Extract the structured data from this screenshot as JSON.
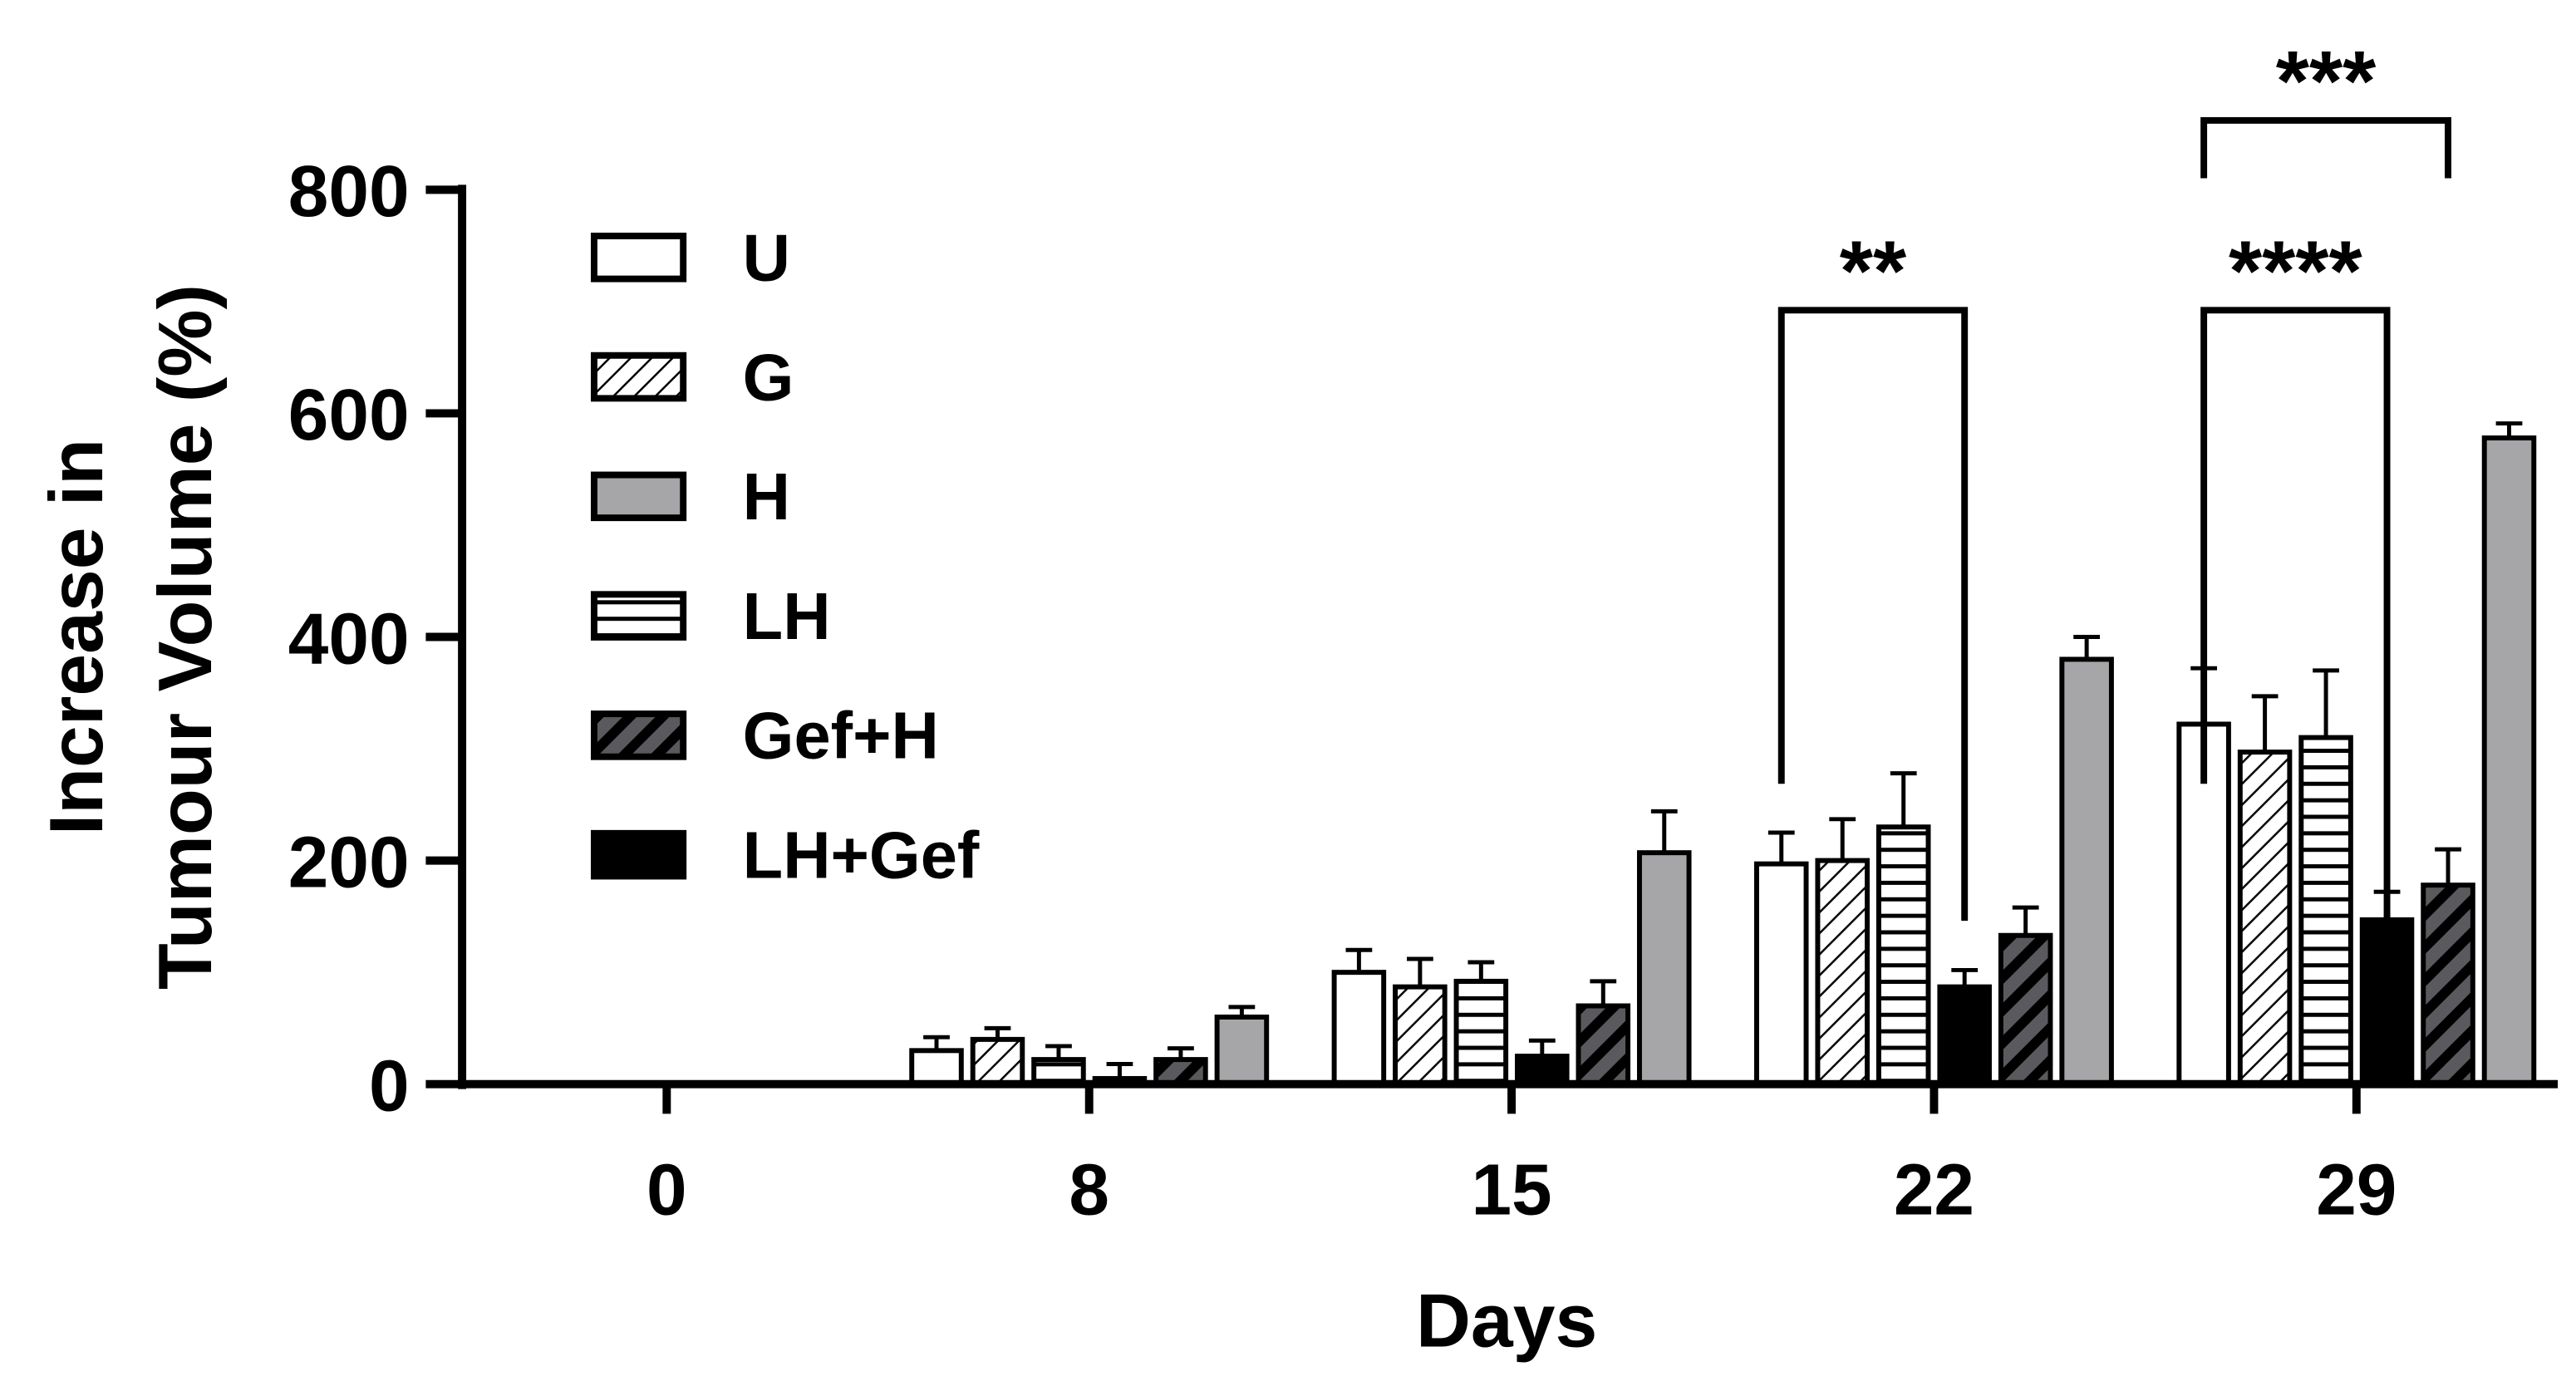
{
  "chart_data": {
    "type": "bar",
    "xlabel": "Days",
    "ylabel": [
      "Increase in",
      "Tumour Volume (%)"
    ],
    "categories": [
      "0",
      "8",
      "15",
      "22",
      "29"
    ],
    "ylim": [
      0,
      800
    ],
    "yticks": [
      0,
      200,
      400,
      600,
      800
    ],
    "series": [
      {
        "name": "U",
        "color": "#ffffff",
        "pattern": "none",
        "values": [
          0,
          30,
          100,
          197,
          322
        ],
        "errors": [
          0,
          12,
          20,
          28,
          50
        ]
      },
      {
        "name": "G",
        "color": "#ffffff",
        "pattern": "diagonal",
        "values": [
          0,
          40,
          87,
          200,
          297
        ],
        "errors": [
          0,
          10,
          25,
          37,
          50
        ]
      },
      {
        "name": "LH",
        "color": "#ffffff",
        "pattern": "horizontal",
        "values": [
          0,
          22,
          92,
          230,
          310
        ],
        "errors": [
          0,
          12,
          17,
          48,
          60
        ]
      },
      {
        "name": "LH+Gef",
        "color": "#000000",
        "pattern": "none",
        "values": [
          0,
          5,
          25,
          87,
          147
        ],
        "errors": [
          0,
          13,
          14,
          15,
          25
        ]
      },
      {
        "name": "Gef+H",
        "color": "#5a5a5e",
        "pattern": "thick-diagonal",
        "values": [
          0,
          22,
          70,
          133,
          178
        ],
        "errors": [
          0,
          10,
          22,
          25,
          32
        ]
      },
      {
        "name": "H",
        "color": "#a6a6a8",
        "pattern": "none",
        "values": [
          0,
          60,
          207,
          380,
          578
        ],
        "errors": [
          0,
          9,
          37,
          20,
          13
        ]
      }
    ],
    "legend_order": [
      "U",
      "G",
      "H",
      "LH",
      "Gef+H",
      "LH+Gef"
    ],
    "annotations": [
      {
        "text": "**",
        "category": "22",
        "from": "U",
        "to": "LH+Gef"
      },
      {
        "text": "****",
        "category": "29",
        "from": "U",
        "to": "LH+Gef"
      },
      {
        "text": "***",
        "category": "29",
        "from": "U",
        "to": "Gef+H"
      }
    ]
  }
}
